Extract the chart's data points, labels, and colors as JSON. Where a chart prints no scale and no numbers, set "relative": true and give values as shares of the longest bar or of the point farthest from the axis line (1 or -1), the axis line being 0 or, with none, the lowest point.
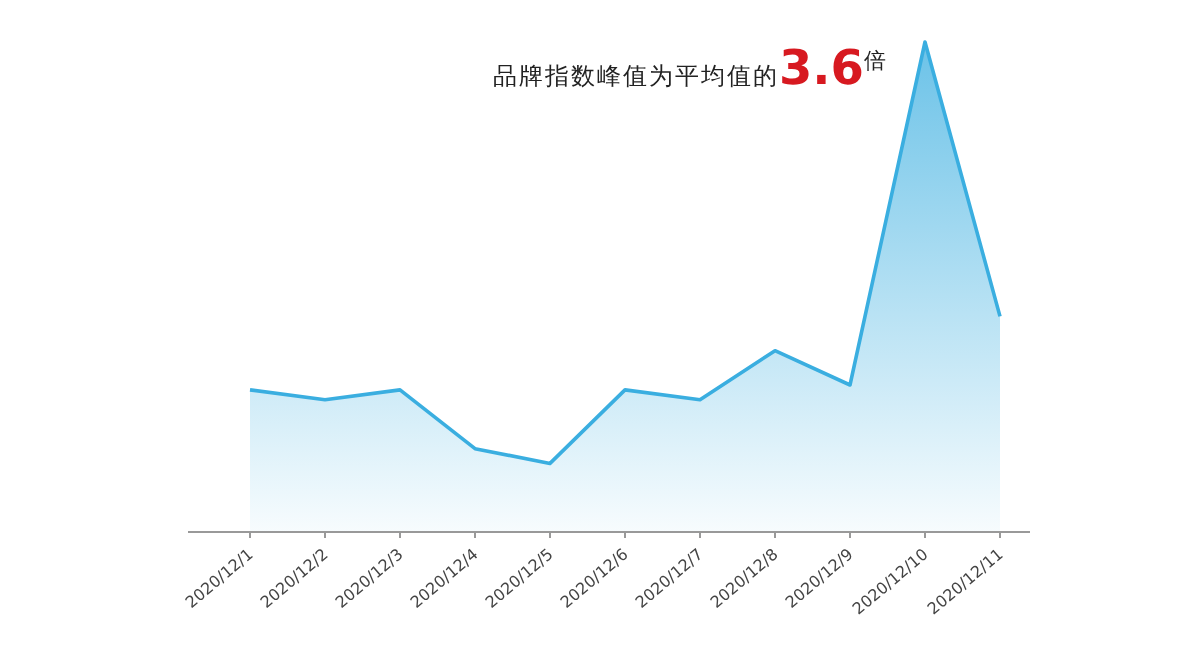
{
  "chart_data": {
    "type": "area",
    "relative": true,
    "categories": [
      "2020/12/1",
      "2020/12/2",
      "2020/12/3",
      "2020/12/4",
      "2020/12/5",
      "2020/12/6",
      "2020/12/7",
      "2020/12/8",
      "2020/12/9",
      "2020/12/10",
      "2020/12/11"
    ],
    "series": [
      {
        "color": "#3aaee0",
        "values": [
          0.29,
          0.27,
          0.29,
          0.17,
          0.14,
          0.29,
          0.27,
          0.37,
          0.3,
          1,
          0.44
        ]
      }
    ],
    "annotations": [
      "品牌指数峰值为平均值的**3.6**倍"
    ]
  }
}
